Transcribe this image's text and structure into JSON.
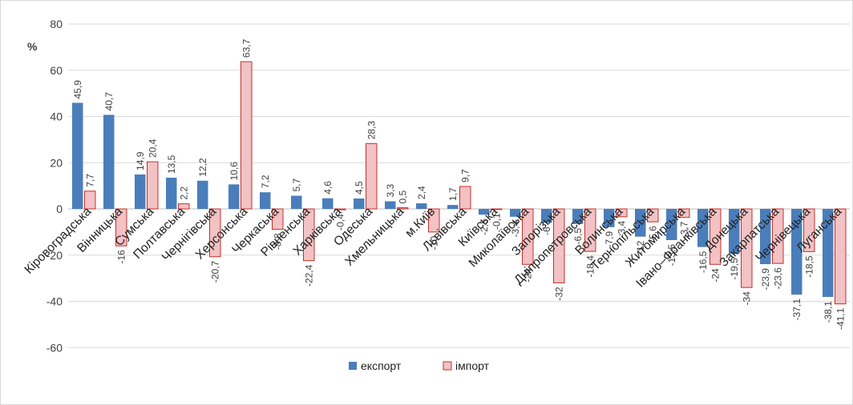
{
  "chart_data": {
    "type": "bar",
    "ylabel": "%",
    "ylim": [
      -60,
      80
    ],
    "yticks": [
      80,
      60,
      40,
      20,
      0,
      -20,
      -40,
      -60
    ],
    "grid": true,
    "legend_placement": "bottom",
    "categories": [
      "Кіровоградська",
      "Вінницька",
      "Сумська",
      "Полтавська",
      "Чернігівська",
      "Херсонська",
      "Черкаська",
      "Рівненська",
      "Харківська",
      "Одеська",
      "Хмельницька",
      "м.Київ",
      "Львівська",
      "Київська",
      "Миколаївська",
      "Запорізька",
      "Дніпропетровська",
      "Волинська",
      "Тернопільська",
      "Житомирська",
      "Івано–Франківська",
      "Донецька",
      "Закарпатська",
      "Чернівецька",
      "Луганська"
    ],
    "series": [
      {
        "name": "експорт",
        "color": "#4a7ebb",
        "values": [
          45.9,
          40.7,
          14.9,
          13.5,
          12.2,
          10.6,
          7.2,
          5.7,
          4.6,
          4.5,
          3.3,
          2.4,
          1.7,
          -2.5,
          -3.4,
          -6.0,
          -6.5,
          -7.9,
          -12.0,
          -13.5,
          -16.5,
          -19.5,
          -23.9,
          -37.1,
          -38.1
        ]
      },
      {
        "name": "імпорт",
        "color": "#f2c2c4",
        "values": [
          7.7,
          -16.0,
          20.4,
          2.2,
          -20.7,
          63.7,
          -8.8,
          -22.4,
          -0.4,
          28.3,
          0.5,
          -10.0,
          9.7,
          -0.1,
          -24.0,
          -32.0,
          -18.4,
          -3.4,
          -5.6,
          -3.7,
          -24.0,
          -34.0,
          -23.6,
          -18.5,
          -41.1
        ]
      }
    ],
    "data_labels": {
      "export": [
        "45,9",
        "40,7",
        "14,9",
        "13,5",
        "12,2",
        "10,6",
        "7,2",
        "5,7",
        "4,6",
        "4,5",
        "3,3",
        "2,4",
        "1,7",
        "-2,5",
        "-3,4",
        "-6",
        "-6,5",
        "-7,9",
        "-12",
        "-13,5",
        "-16,5",
        "-19,5",
        "-23,9",
        "-37,1",
        "-38,1"
      ],
      "import": [
        "7,7",
        "-16",
        "20,4",
        "2,2",
        "-20,7",
        "63,7",
        "-8,8",
        "-22,4",
        "-0,4",
        "28,3",
        "0,5",
        "-10",
        "9,7",
        "-0,1",
        "-24",
        "-32",
        "-18,4",
        "-3,4",
        "-5,6",
        "-3,7",
        "-24",
        "-34",
        "-23,6",
        "-18,5",
        "-41,1"
      ]
    }
  }
}
